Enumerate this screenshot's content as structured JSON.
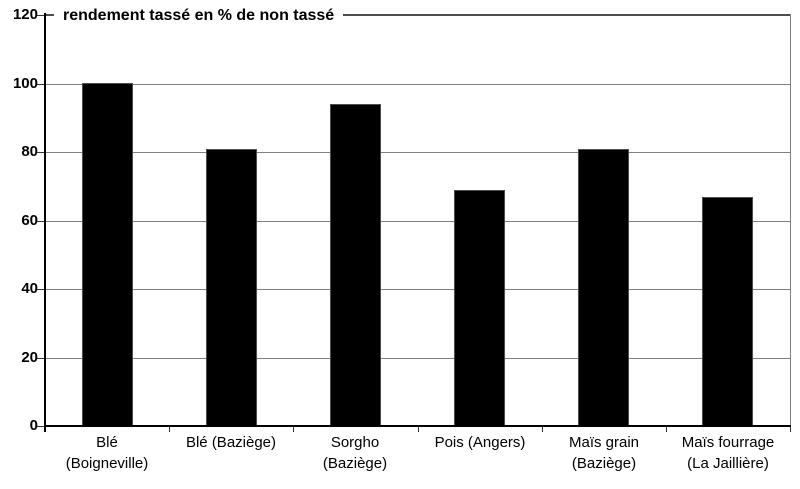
{
  "chart_data": {
    "type": "bar",
    "title": "rendement tassé en %  de non tassé",
    "categories": [
      "Blé\n(Boigneville)",
      "Blé (Baziège)",
      "Sorgho\n(Baziège)",
      "Pois (Angers)",
      "Maïs grain\n(Baziège)",
      "Maïs fourrage\n(La Jaillière)"
    ],
    "values": [
      100,
      81,
      94,
      69,
      81,
      67
    ],
    "xlabel": "",
    "ylabel": "",
    "ylim": [
      0,
      120
    ],
    "yticks": [
      0,
      20,
      40,
      60,
      80,
      100,
      120
    ],
    "grid": true,
    "legend": "none",
    "bar_color": "#000000",
    "gridline_color": "#808080",
    "axis_color": "#000000",
    "background_color": "#ffffff"
  }
}
